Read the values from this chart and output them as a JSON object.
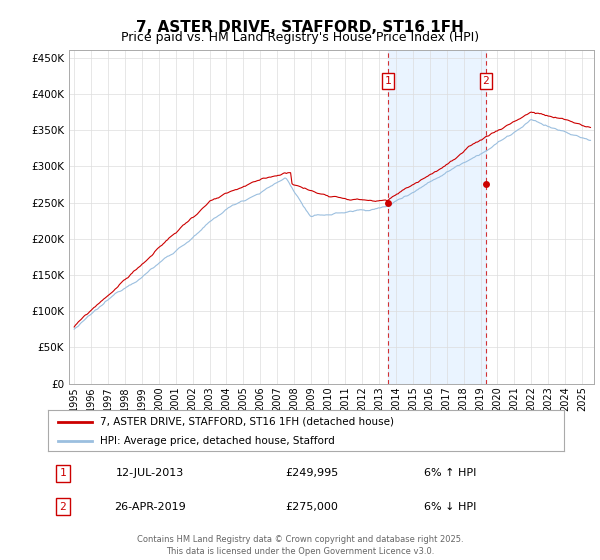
{
  "title": "7, ASTER DRIVE, STAFFORD, ST16 1FH",
  "subtitle": "Price paid vs. HM Land Registry's House Price Index (HPI)",
  "title_fontsize": 11,
  "subtitle_fontsize": 9,
  "ylabel_ticks": [
    "£0",
    "£50K",
    "£100K",
    "£150K",
    "£200K",
    "£250K",
    "£300K",
    "£350K",
    "£400K",
    "£450K"
  ],
  "ytick_vals": [
    0,
    50000,
    100000,
    150000,
    200000,
    250000,
    300000,
    350000,
    400000,
    450000
  ],
  "ylim": [
    0,
    460000
  ],
  "xlim_start": 1994.7,
  "xlim_end": 2025.7,
  "hpi_color": "#9bbfdf",
  "price_color": "#cc0000",
  "marker_color": "#cc0000",
  "sale1_x": 2013.53,
  "sale1_y": 249995,
  "sale1_label": "1",
  "sale1_date": "12-JUL-2013",
  "sale1_price": "£249,995",
  "sale1_hpi": "6% ↑ HPI",
  "sale2_x": 2019.32,
  "sale2_y": 275000,
  "sale2_label": "2",
  "sale2_date": "26-APR-2019",
  "sale2_price": "£275,000",
  "sale2_hpi": "6% ↓ HPI",
  "legend_line1": "7, ASTER DRIVE, STAFFORD, ST16 1FH (detached house)",
  "legend_line2": "HPI: Average price, detached house, Stafford",
  "footer": "Contains HM Land Registry data © Crown copyright and database right 2025.\nThis data is licensed under the Open Government Licence v3.0.",
  "background_color": "#ffffff",
  "grid_color": "#dddddd",
  "shade_color": "#ddeeff"
}
